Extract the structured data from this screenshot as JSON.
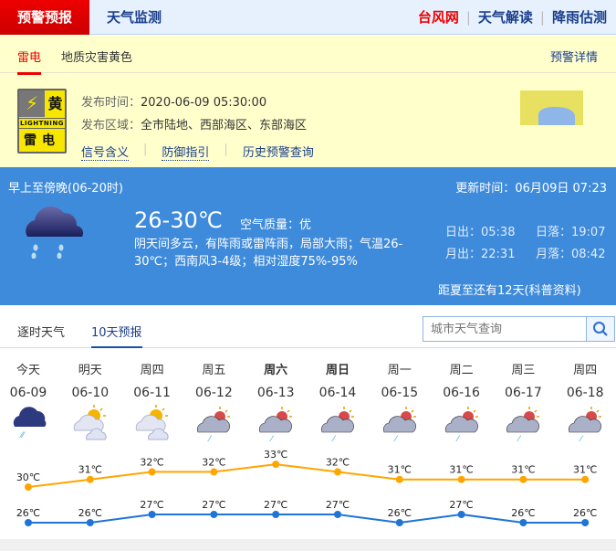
{
  "topnav": {
    "active": "预警预报",
    "tab2": "天气监测",
    "links": [
      "台风网",
      "天气解读",
      "降雨估测"
    ]
  },
  "warning": {
    "tabs": [
      "雷电",
      "地质灾害黄色"
    ],
    "detail_link": "预警详情",
    "badge": {
      "level": "黄",
      "en": "LIGHTNING",
      "name": "雷电",
      "icon": "lightning-icon"
    },
    "time_label": "发布时间：",
    "time": "2020-06-09 05:30:00",
    "area_label": "发布区域：",
    "area": "全市陆地、西部海区、东部海区",
    "links": [
      "信号含义",
      "防御指引",
      "历史预警查询"
    ]
  },
  "today": {
    "period": "早上至傍晚(06-20时)",
    "update_label": "更新时间：",
    "update": "06月09日 07:23",
    "temp": "26-30℃",
    "aq_label": "空气质量：",
    "aq": "优",
    "desc": "阴天间多云，有阵雨或雷阵雨，局部大雨；气温26-30℃；西南风3-4级；相对湿度75%-95%",
    "sunrise": "日出：05:38",
    "sunset": "日落：19:07",
    "moonrise": "月出：22:31",
    "moonset": "月落：08:42",
    "solstice": "距夏至还有12天(科普资料)",
    "icon": "rain-cloud-icon"
  },
  "tabs": [
    "逐时天气",
    "10天预报"
  ],
  "search": {
    "placeholder": "城市天气查询"
  },
  "forecast": {
    "days": [
      {
        "week": "今天",
        "date": "06-09",
        "icon": "rain",
        "high": 30,
        "low": 26,
        "bold": false
      },
      {
        "week": "明天",
        "date": "06-10",
        "icon": "partly-cloudy",
        "high": 31,
        "low": 26,
        "bold": false
      },
      {
        "week": "周四",
        "date": "06-11",
        "icon": "partly-cloudy",
        "high": 32,
        "low": 27,
        "bold": false
      },
      {
        "week": "周五",
        "date": "06-12",
        "icon": "shower",
        "high": 32,
        "low": 27,
        "bold": false
      },
      {
        "week": "周六",
        "date": "06-13",
        "icon": "shower",
        "high": 33,
        "low": 27,
        "bold": true
      },
      {
        "week": "周日",
        "date": "06-14",
        "icon": "shower",
        "high": 32,
        "low": 27,
        "bold": true
      },
      {
        "week": "周一",
        "date": "06-15",
        "icon": "shower",
        "high": 31,
        "low": 26,
        "bold": false
      },
      {
        "week": "周二",
        "date": "06-16",
        "icon": "shower",
        "high": 31,
        "low": 27,
        "bold": false
      },
      {
        "week": "周三",
        "date": "06-17",
        "icon": "shower",
        "high": 31,
        "low": 26,
        "bold": false
      },
      {
        "week": "周四",
        "date": "06-18",
        "icon": "shower",
        "high": 31,
        "low": 26,
        "bold": false
      }
    ],
    "unit": "℃",
    "high_color": "#ffa500",
    "low_color": "#1f74d6"
  }
}
